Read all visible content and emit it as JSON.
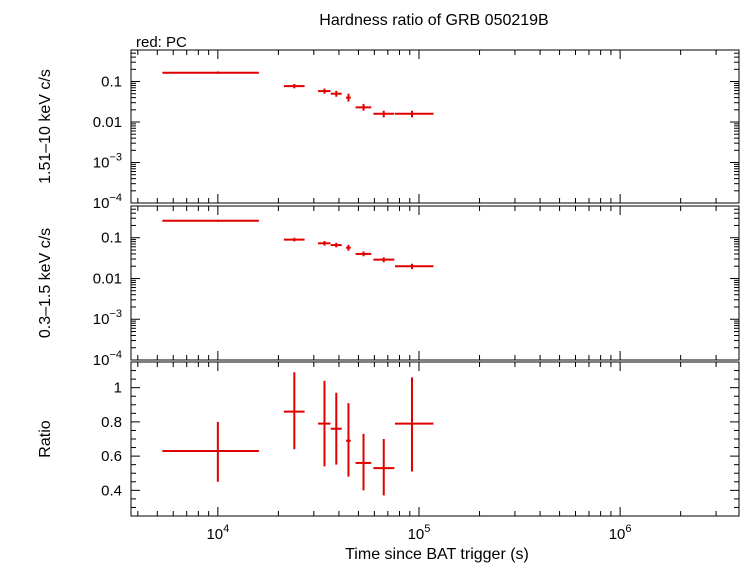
{
  "chart_data": {
    "type": "scatter",
    "title": "Hardness ratio of GRB 050219B",
    "subtitle": "red: PC",
    "xlabel": "Time since BAT trigger (s)",
    "x_scale": "log",
    "xlim": [
      3700,
      3900000
    ],
    "x_tick_labels": [
      {
        "value": 10000,
        "base": "10",
        "exp": "4"
      },
      {
        "value": 100000,
        "base": "10",
        "exp": "5"
      },
      {
        "value": 1000000,
        "base": "10",
        "exp": "6"
      }
    ],
    "panels": [
      {
        "id": "hard",
        "ylabel": "1.51–10 keV c/s",
        "y_scale": "log",
        "ylim": [
          0.0001,
          0.6
        ],
        "y_tick_labels": [
          {
            "value": 0.1,
            "text": "0.1"
          },
          {
            "value": 0.01,
            "text": "0.01"
          },
          {
            "value": 0.001,
            "base": "10",
            "exp": "−3"
          },
          {
            "value": 0.0001,
            "base": "10",
            "exp": "−4"
          }
        ],
        "points": [
          {
            "x": 10000,
            "x_lo": 5300,
            "x_hi": 16000,
            "y": 0.165,
            "y_lo": 0.155,
            "y_hi": 0.177
          },
          {
            "x": 24000,
            "x_lo": 21300,
            "x_hi": 27000,
            "y": 0.077,
            "y_lo": 0.068,
            "y_hi": 0.087
          },
          {
            "x": 33900,
            "x_lo": 31500,
            "x_hi": 36300,
            "y": 0.058,
            "y_lo": 0.05,
            "y_hi": 0.067
          },
          {
            "x": 38800,
            "x_lo": 36400,
            "x_hi": 41300,
            "y": 0.05,
            "y_lo": 0.042,
            "y_hi": 0.059
          },
          {
            "x": 44600,
            "x_lo": 43400,
            "x_hi": 45800,
            "y": 0.04,
            "y_lo": 0.032,
            "y_hi": 0.05
          },
          {
            "x": 53000,
            "x_lo": 48400,
            "x_hi": 57900,
            "y": 0.023,
            "y_lo": 0.019,
            "y_hi": 0.028
          },
          {
            "x": 66800,
            "x_lo": 59300,
            "x_hi": 75400,
            "y": 0.016,
            "y_lo": 0.013,
            "y_hi": 0.019
          },
          {
            "x": 92300,
            "x_lo": 76000,
            "x_hi": 118000,
            "y": 0.016,
            "y_lo": 0.013,
            "y_hi": 0.019
          }
        ]
      },
      {
        "id": "soft",
        "ylabel": "0.3–1.5 keV c/s",
        "y_scale": "log",
        "ylim": [
          0.0001,
          0.6
        ],
        "y_tick_labels": [
          {
            "value": 0.1,
            "text": "0.1"
          },
          {
            "value": 0.01,
            "text": "0.01"
          },
          {
            "value": 0.001,
            "base": "10",
            "exp": "−3"
          },
          {
            "value": 0.0001,
            "base": "10",
            "exp": "−4"
          }
        ],
        "points": [
          {
            "x": 10000,
            "x_lo": 5300,
            "x_hi": 16000,
            "y": 0.26,
            "y_lo": 0.245,
            "y_hi": 0.276
          },
          {
            "x": 24000,
            "x_lo": 21300,
            "x_hi": 27000,
            "y": 0.09,
            "y_lo": 0.081,
            "y_hi": 0.1
          },
          {
            "x": 33900,
            "x_lo": 31500,
            "x_hi": 36300,
            "y": 0.073,
            "y_lo": 0.064,
            "y_hi": 0.083
          },
          {
            "x": 38800,
            "x_lo": 36400,
            "x_hi": 41300,
            "y": 0.066,
            "y_lo": 0.058,
            "y_hi": 0.075
          },
          {
            "x": 44600,
            "x_lo": 43400,
            "x_hi": 45800,
            "y": 0.057,
            "y_lo": 0.048,
            "y_hi": 0.067
          },
          {
            "x": 53000,
            "x_lo": 48400,
            "x_hi": 57900,
            "y": 0.04,
            "y_lo": 0.035,
            "y_hi": 0.046
          },
          {
            "x": 66800,
            "x_lo": 59300,
            "x_hi": 75400,
            "y": 0.029,
            "y_lo": 0.025,
            "y_hi": 0.033
          },
          {
            "x": 92300,
            "x_lo": 76000,
            "x_hi": 118000,
            "y": 0.02,
            "y_lo": 0.017,
            "y_hi": 0.023
          }
        ]
      },
      {
        "id": "ratio",
        "ylabel": "Ratio",
        "y_scale": "linear",
        "ylim": [
          0.25,
          1.15
        ],
        "y_tick_labels": [
          {
            "value": 1,
            "text": "1"
          },
          {
            "value": 0.8,
            "text": "0.8"
          },
          {
            "value": 0.6,
            "text": "0.6"
          },
          {
            "value": 0.4,
            "text": "0.4"
          }
        ],
        "points": [
          {
            "x": 10000,
            "x_lo": 5300,
            "x_hi": 16000,
            "y": 0.63,
            "y_lo": 0.45,
            "y_hi": 0.8
          },
          {
            "x": 24000,
            "x_lo": 21300,
            "x_hi": 27000,
            "y": 0.86,
            "y_lo": 0.64,
            "y_hi": 1.09
          },
          {
            "x": 33900,
            "x_lo": 31500,
            "x_hi": 36300,
            "y": 0.79,
            "y_lo": 0.54,
            "y_hi": 1.04
          },
          {
            "x": 38800,
            "x_lo": 36400,
            "x_hi": 41300,
            "y": 0.76,
            "y_lo": 0.55,
            "y_hi": 0.97
          },
          {
            "x": 44600,
            "x_lo": 43400,
            "x_hi": 45800,
            "y": 0.69,
            "y_lo": 0.48,
            "y_hi": 0.91
          },
          {
            "x": 53000,
            "x_lo": 48400,
            "x_hi": 57900,
            "y": 0.56,
            "y_lo": 0.4,
            "y_hi": 0.73
          },
          {
            "x": 66800,
            "x_lo": 59300,
            "x_hi": 75400,
            "y": 0.53,
            "y_lo": 0.37,
            "y_hi": 0.7
          },
          {
            "x": 92300,
            "x_lo": 76000,
            "x_hi": 118000,
            "y": 0.79,
            "y_lo": 0.51,
            "y_hi": 1.06
          }
        ]
      }
    ],
    "series": [
      {
        "color": "#e00000"
      }
    ],
    "grid": false,
    "legend": "none"
  }
}
